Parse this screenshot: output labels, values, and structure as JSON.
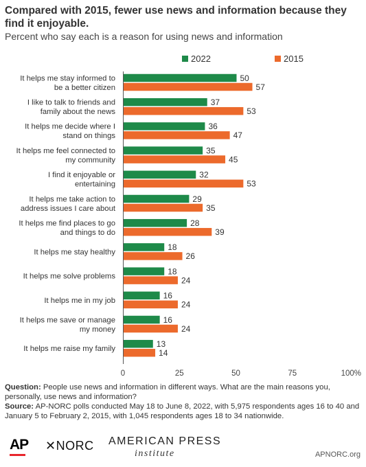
{
  "header": {
    "title": "Compared with 2015, fewer use news and information because they find it enjoyable.",
    "subtitle": "Percent who say each is a reason for using news and information"
  },
  "colors": {
    "series_2022": "#1e8a49",
    "series_2015": "#ec6a2c"
  },
  "chart_data": {
    "type": "bar",
    "orientation": "horizontal",
    "categories": [
      [
        "It helps me stay informed to",
        "be a better citizen"
      ],
      [
        "I like to talk to friends and",
        "family about the news"
      ],
      [
        "It helps me decide where I",
        "stand on things"
      ],
      [
        "It helps me feel connected to",
        "my community"
      ],
      [
        "I find it enjoyable or",
        "entertaining"
      ],
      [
        "It helps me take action to",
        "address issues I care about"
      ],
      [
        "It helps me find places to go",
        "and things to do"
      ],
      [
        "It helps me stay healthy"
      ],
      [
        "It helps me solve problems"
      ],
      [
        "It helps me in my job"
      ],
      [
        "It helps me save or manage",
        "my money"
      ],
      [
        "It helps me raise my family"
      ]
    ],
    "series": [
      {
        "name": "2022",
        "color": "#1e8a49",
        "values": [
          50,
          37,
          36,
          35,
          32,
          29,
          28,
          18,
          18,
          16,
          16,
          13
        ]
      },
      {
        "name": "2015",
        "color": "#ec6a2c",
        "values": [
          57,
          53,
          47,
          45,
          53,
          35,
          39,
          26,
          24,
          24,
          24,
          14
        ]
      }
    ],
    "xlim": [
      0,
      100
    ],
    "xticks": [
      "0",
      "25",
      "50",
      "75",
      "100%"
    ],
    "xtick_values": [
      0,
      25,
      50,
      75,
      100
    ],
    "legend_position": "top-right",
    "grid": false
  },
  "notes": {
    "question_label": "Question:",
    "question_text": "People use news and information in different ways. What are the main reasons you, personally, use news and information?",
    "source_label": "Source:",
    "source_text": "AP-NORC polls conducted May 18 to June 8, 2022, with 5,975 respondents ages 16 to 40 and January 5 to February 2, 2015, with 1,045 respondents ages 18 to 34 nationwide."
  },
  "footer": {
    "ap_logo": "AP",
    "norc_logo": "✕NORC",
    "api_logo_top": "AMERICAN PRESS",
    "api_logo_bottom": "institute",
    "site": "APNORC.org"
  }
}
